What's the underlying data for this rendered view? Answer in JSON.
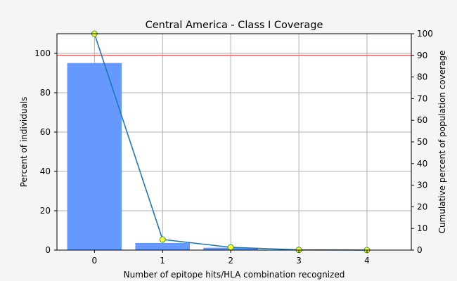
{
  "chart_data": {
    "type": "bar",
    "title": "Central America - Class I Coverage",
    "xlabel": "Number of epitope hits/HLA combination recognized",
    "ylabel": "Percent of individuals",
    "y2label": "Cumulative percent of population coverage",
    "categories": [
      0,
      1,
      2,
      3,
      4
    ],
    "xlim": [
      -0.55,
      4.65
    ],
    "ylim": [
      0,
      110
    ],
    "y2lim": [
      0,
      100
    ],
    "yticks": [
      0,
      20,
      40,
      60,
      80,
      100
    ],
    "y2ticks": [
      0,
      10,
      20,
      30,
      40,
      50,
      60,
      70,
      80,
      90,
      100
    ],
    "grid": true,
    "series": [
      {
        "kind": "bar",
        "axis": "left",
        "color": "#6699ff",
        "values": [
          95.1,
          3.6,
          1.2,
          0.1,
          0.0
        ]
      },
      {
        "kind": "line",
        "axis": "right",
        "color": "#1f77b4",
        "marker_color": "#ffff33",
        "marker_edge_color": "#3a9a3a",
        "values": [
          100,
          4.9,
          1.3,
          0.1,
          0.0
        ]
      }
    ],
    "reference_line": {
      "axis": "right",
      "value": 90,
      "color": "#ff3333"
    }
  }
}
